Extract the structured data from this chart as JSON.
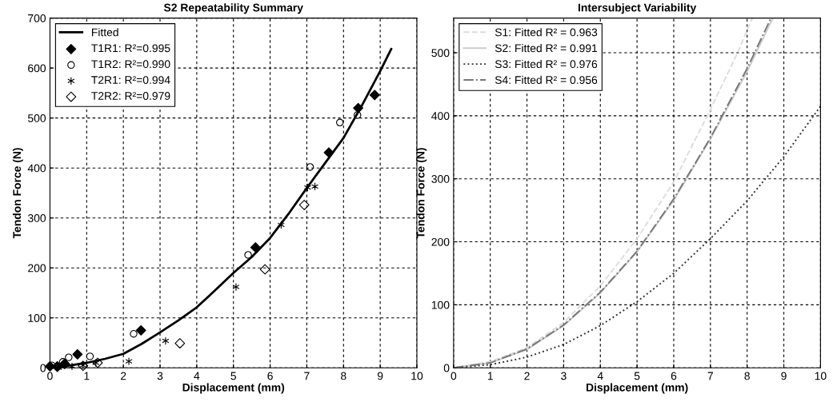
{
  "chart_data": [
    {
      "type": "scatter",
      "title": "S2 Repeatability Summary",
      "xlabel": "Displacement (mm)",
      "ylabel": "Tendon Force (N)",
      "xlim": [
        0,
        10
      ],
      "ylim": [
        0,
        700
      ],
      "xticks": [
        0,
        1,
        2,
        3,
        4,
        5,
        6,
        7,
        8,
        9,
        10
      ],
      "yticks": [
        0,
        100,
        200,
        300,
        400,
        500,
        600,
        700
      ],
      "grid": true,
      "legend": "top left",
      "series": [
        {
          "name": "Fitted",
          "type": "line",
          "color": "#000000",
          "line_style": "solid",
          "marker": "none",
          "x": [
            0,
            0.5,
            1,
            1.5,
            2,
            2.5,
            3,
            3.5,
            4,
            4.5,
            5,
            5.5,
            6,
            6.5,
            7,
            7.5,
            8,
            8.5,
            9,
            9.3
          ],
          "values": [
            0,
            4,
            10,
            18,
            28,
            48,
            71,
            95,
            121,
            155,
            190,
            222,
            260,
            308,
            360,
            410,
            460,
            525,
            594,
            638
          ]
        },
        {
          "name": "T1R1: R²=0.995",
          "color": "#000000",
          "marker": "diamond",
          "x": [
            0,
            0.2,
            0.4,
            0.75,
            2.48,
            5.6,
            7.6,
            8.4,
            8.85
          ],
          "values": [
            3,
            2,
            8,
            27,
            75,
            241,
            431,
            520,
            546
          ]
        },
        {
          "name": "T1R2: R²=0.990",
          "color": "#000000",
          "marker": "circle",
          "x": [
            0.05,
            0.35,
            0.51,
            1.09,
            2.28,
            5.4,
            7.09,
            7.9,
            8.38
          ],
          "values": [
            5,
            12,
            21,
            23,
            68,
            226,
            402,
            491,
            506
          ]
        },
        {
          "name": "T2R1: R²=0.994",
          "color": "#000000",
          "marker": "cross",
          "x": [
            0.3,
            0.6,
            0.9,
            1.25,
            2.15,
            3.15,
            5.07,
            6.3,
            7.02,
            7.22
          ],
          "values": [
            3,
            3,
            5,
            10,
            13,
            54,
            162,
            286,
            361,
            363
          ]
        },
        {
          "name": "T2R2: R²=0.979",
          "color": "#000000",
          "marker": "diamond",
          "x": [
            0.2,
            0.4,
            0.9,
            1.3,
            3.54,
            5.86,
            6.93
          ],
          "values": [
            3,
            8,
            4,
            10,
            49,
            197,
            326
          ]
        }
      ]
    },
    {
      "type": "line",
      "title": "Intersubject Variability",
      "xlabel": "Displacement (mm)",
      "ylabel": "Tendon Force (N)",
      "xlim": [
        0,
        10
      ],
      "ylim": [
        0,
        555
      ],
      "xticks": [
        0,
        1,
        2,
        3,
        4,
        5,
        6,
        7,
        8,
        9,
        10
      ],
      "yticks": [
        0,
        100,
        200,
        300,
        400,
        500
      ],
      "grid": true,
      "legend": "top left",
      "series": [
        {
          "name": "S1: Fitted R² = 0.963",
          "color": "#dddddd",
          "line_style": "dashed",
          "x": [
            0,
            1,
            2,
            3,
            4,
            5,
            6,
            7,
            7.74,
            8.14
          ],
          "values": [
            0,
            10,
            32,
            72,
            130,
            205,
            295,
            410,
            500,
            555
          ]
        },
        {
          "name": "S2: Fitted R² = 0.991",
          "color": "#cccccc",
          "line_style": "solid",
          "x": [
            0,
            1,
            2,
            3,
            4,
            5,
            6,
            7,
            8,
            8.7
          ],
          "values": [
            0,
            8,
            29,
            67,
            119,
            184,
            266,
            363,
            470,
            555
          ]
        },
        {
          "name": "S3: Fitted R² = 0.976",
          "color": "#333333",
          "line_style": "dotted",
          "x": [
            0,
            1,
            2,
            3,
            4,
            5,
            6,
            7,
            8,
            9,
            10
          ],
          "values": [
            0,
            5,
            17,
            37,
            67,
            105,
            150,
            205,
            265,
            335,
            415
          ]
        },
        {
          "name": "S4: Fitted R² = 0.956",
          "color": "#777777",
          "line_style": "dashdot",
          "x": [
            0,
            1,
            2,
            3,
            4,
            5,
            6,
            7,
            8,
            8.65
          ],
          "values": [
            0,
            8,
            30,
            68,
            120,
            185,
            268,
            365,
            475,
            555
          ]
        }
      ]
    }
  ]
}
